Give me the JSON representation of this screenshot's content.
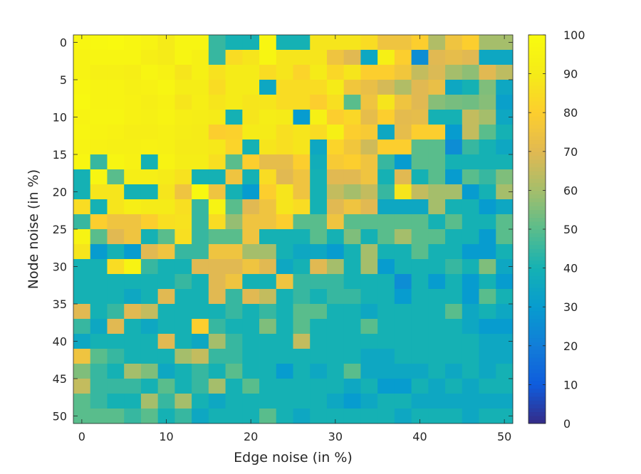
{
  "chart_data": {
    "type": "heatmap",
    "title": "",
    "xlabel": "Edge noise (in %)",
    "ylabel": "Node noise (in %)",
    "x": [
      0,
      2,
      4,
      6,
      8,
      10,
      12,
      14,
      16,
      18,
      20,
      22,
      24,
      26,
      28,
      30,
      32,
      34,
      36,
      38,
      40,
      42,
      44,
      46,
      48,
      50
    ],
    "y": [
      0,
      2,
      4,
      6,
      8,
      10,
      12,
      14,
      16,
      18,
      20,
      22,
      24,
      26,
      28,
      30,
      32,
      34,
      36,
      38,
      40,
      42,
      44,
      46,
      48,
      50
    ],
    "xlim": [
      -1,
      51
    ],
    "ylim": [
      -1,
      51
    ],
    "y_reversed": true,
    "x_ticks": [
      0,
      10,
      20,
      30,
      40,
      50
    ],
    "y_ticks": [
      0,
      5,
      10,
      15,
      20,
      25,
      30,
      35,
      40,
      45,
      50
    ],
    "x_tick_labels": [
      "0",
      "10",
      "20",
      "30",
      "40",
      "50"
    ],
    "y_tick_labels": [
      "0",
      "5",
      "10",
      "15",
      "20",
      "25",
      "30",
      "35",
      "40",
      "45",
      "50"
    ],
    "colormap": "parula",
    "colorbar": {
      "range": [
        0,
        100
      ],
      "ticks": [
        0,
        10,
        20,
        30,
        40,
        50,
        60,
        70,
        80,
        90,
        100
      ],
      "tick_labels": [
        "0",
        "10",
        "20",
        "30",
        "40",
        "50",
        "60",
        "70",
        "80",
        "90",
        "100"
      ]
    },
    "grid": false,
    "values": [
      [
        97,
        98,
        99,
        97,
        95,
        90,
        96,
        96,
        45,
        40,
        40,
        97,
        40,
        40,
        88,
        88,
        88,
        85,
        75,
        75,
        80,
        62,
        75,
        80,
        60,
        60
      ],
      [
        95,
        96,
        96,
        96,
        92,
        90,
        96,
        93,
        45,
        85,
        88,
        96,
        88,
        88,
        88,
        75,
        70,
        35,
        93,
        80,
        25,
        70,
        72,
        70,
        35,
        35
      ],
      [
        95,
        93,
        93,
        92,
        96,
        94,
        88,
        93,
        87,
        90,
        90,
        85,
        88,
        82,
        90,
        83,
        88,
        80,
        80,
        76,
        65,
        69,
        60,
        57,
        70,
        64
      ],
      [
        97,
        95,
        95,
        93,
        94,
        96,
        91,
        91,
        85,
        90,
        90,
        35,
        85,
        85,
        85,
        90,
        76,
        73,
        68,
        62,
        70,
        73,
        35,
        40,
        55,
        35
      ],
      [
        98,
        95,
        95,
        94,
        92,
        94,
        88,
        92,
        88,
        90,
        88,
        88,
        85,
        85,
        80,
        86,
        50,
        75,
        88,
        75,
        70,
        56,
        54,
        53,
        56,
        32
      ],
      [
        95,
        96,
        96,
        94,
        93,
        95,
        92,
        91,
        90,
        40,
        88,
        91,
        90,
        30,
        93,
        80,
        83,
        72,
        80,
        71,
        72,
        40,
        40,
        65,
        60,
        35
      ],
      [
        96,
        95,
        94,
        92,
        92,
        93,
        91,
        90,
        80,
        81,
        90,
        90,
        86,
        88,
        85,
        93,
        80,
        78,
        35,
        72,
        80,
        80,
        30,
        65,
        50,
        40
      ],
      [
        95,
        94,
        93,
        93,
        94,
        93,
        90,
        90,
        89,
        82,
        40,
        88,
        86,
        88,
        35,
        82,
        76,
        67,
        80,
        80,
        50,
        50,
        25,
        45,
        40,
        35
      ],
      [
        97,
        45,
        96,
        94,
        40,
        95,
        91,
        91,
        86,
        50,
        80,
        72,
        72,
        80,
        38,
        78,
        80,
        75,
        45,
        30,
        50,
        50,
        40,
        40,
        40,
        40
      ],
      [
        40,
        96,
        50,
        92,
        92,
        90,
        87,
        40,
        40,
        75,
        40,
        85,
        70,
        75,
        40,
        70,
        70,
        75,
        40,
        70,
        40,
        50,
        30,
        50,
        45,
        55
      ],
      [
        40,
        88,
        88,
        40,
        40,
        88,
        75,
        98,
        75,
        40,
        30,
        80,
        88,
        75,
        40,
        65,
        60,
        65,
        45,
        88,
        65,
        60,
        60,
        30,
        40,
        60
      ],
      [
        85,
        40,
        88,
        92,
        90,
        90,
        86,
        45,
        95,
        50,
        70,
        75,
        88,
        85,
        40,
        70,
        75,
        70,
        35,
        35,
        35,
        60,
        40,
        40,
        30,
        35
      ],
      [
        45,
        80,
        75,
        75,
        80,
        86,
        87,
        45,
        85,
        58,
        75,
        75,
        80,
        50,
        50,
        75,
        50,
        50,
        50,
        50,
        50,
        40,
        50,
        40,
        40,
        50
      ],
      [
        95,
        50,
        70,
        75,
        40,
        50,
        86,
        45,
        50,
        50,
        75,
        40,
        40,
        40,
        50,
        40,
        55,
        40,
        50,
        60,
        50,
        50,
        40,
        40,
        30,
        50
      ],
      [
        88,
        30,
        40,
        30,
        70,
        75,
        45,
        45,
        75,
        75,
        60,
        60,
        40,
        35,
        35,
        30,
        40,
        60,
        40,
        40,
        50,
        40,
        40,
        30,
        30,
        40
      ],
      [
        40,
        40,
        85,
        95,
        45,
        40,
        40,
        70,
        70,
        70,
        75,
        70,
        35,
        40,
        70,
        60,
        40,
        60,
        30,
        40,
        40,
        40,
        45,
        40,
        55,
        35
      ],
      [
        40,
        40,
        40,
        40,
        40,
        40,
        45,
        40,
        70,
        75,
        40,
        40,
        75,
        45,
        45,
        45,
        40,
        40,
        40,
        25,
        40,
        30,
        40,
        30,
        40,
        30
      ],
      [
        40,
        40,
        40,
        35,
        40,
        70,
        40,
        40,
        70,
        45,
        70,
        65,
        40,
        45,
        40,
        45,
        45,
        40,
        40,
        30,
        40,
        40,
        40,
        30,
        50,
        40
      ],
      [
        70,
        40,
        45,
        70,
        65,
        40,
        40,
        40,
        40,
        45,
        40,
        45,
        40,
        50,
        50,
        40,
        40,
        35,
        40,
        40,
        40,
        40,
        50,
        35,
        40,
        35
      ],
      [
        45,
        35,
        70,
        40,
        35,
        40,
        40,
        80,
        45,
        40,
        40,
        55,
        40,
        50,
        40,
        40,
        40,
        50,
        40,
        40,
        40,
        40,
        40,
        35,
        30,
        30
      ],
      [
        35,
        40,
        40,
        40,
        40,
        70,
        40,
        35,
        60,
        45,
        40,
        40,
        40,
        65,
        40,
        40,
        40,
        40,
        40,
        40,
        40,
        40,
        40,
        40,
        35,
        35
      ],
      [
        75,
        50,
        45,
        40,
        40,
        40,
        60,
        65,
        45,
        45,
        40,
        40,
        40,
        40,
        40,
        40,
        40,
        35,
        35,
        40,
        40,
        40,
        40,
        40,
        35,
        35
      ],
      [
        55,
        45,
        40,
        60,
        55,
        35,
        40,
        45,
        40,
        50,
        40,
        40,
        30,
        40,
        35,
        40,
        50,
        35,
        35,
        35,
        35,
        40,
        35,
        40,
        35,
        40
      ],
      [
        65,
        45,
        45,
        45,
        40,
        50,
        40,
        45,
        60,
        40,
        50,
        40,
        40,
        40,
        40,
        40,
        35,
        40,
        30,
        30,
        40,
        35,
        40,
        35,
        40,
        40
      ],
      [
        50,
        45,
        40,
        40,
        60,
        45,
        60,
        40,
        35,
        40,
        40,
        40,
        40,
        40,
        40,
        35,
        30,
        35,
        40,
        40,
        35,
        35,
        35,
        35,
        35,
        35
      ],
      [
        50,
        50,
        50,
        45,
        50,
        40,
        45,
        35,
        40,
        40,
        40,
        50,
        40,
        35,
        40,
        40,
        40,
        40,
        40,
        35,
        40,
        40,
        40,
        35,
        40,
        40
      ]
    ]
  }
}
